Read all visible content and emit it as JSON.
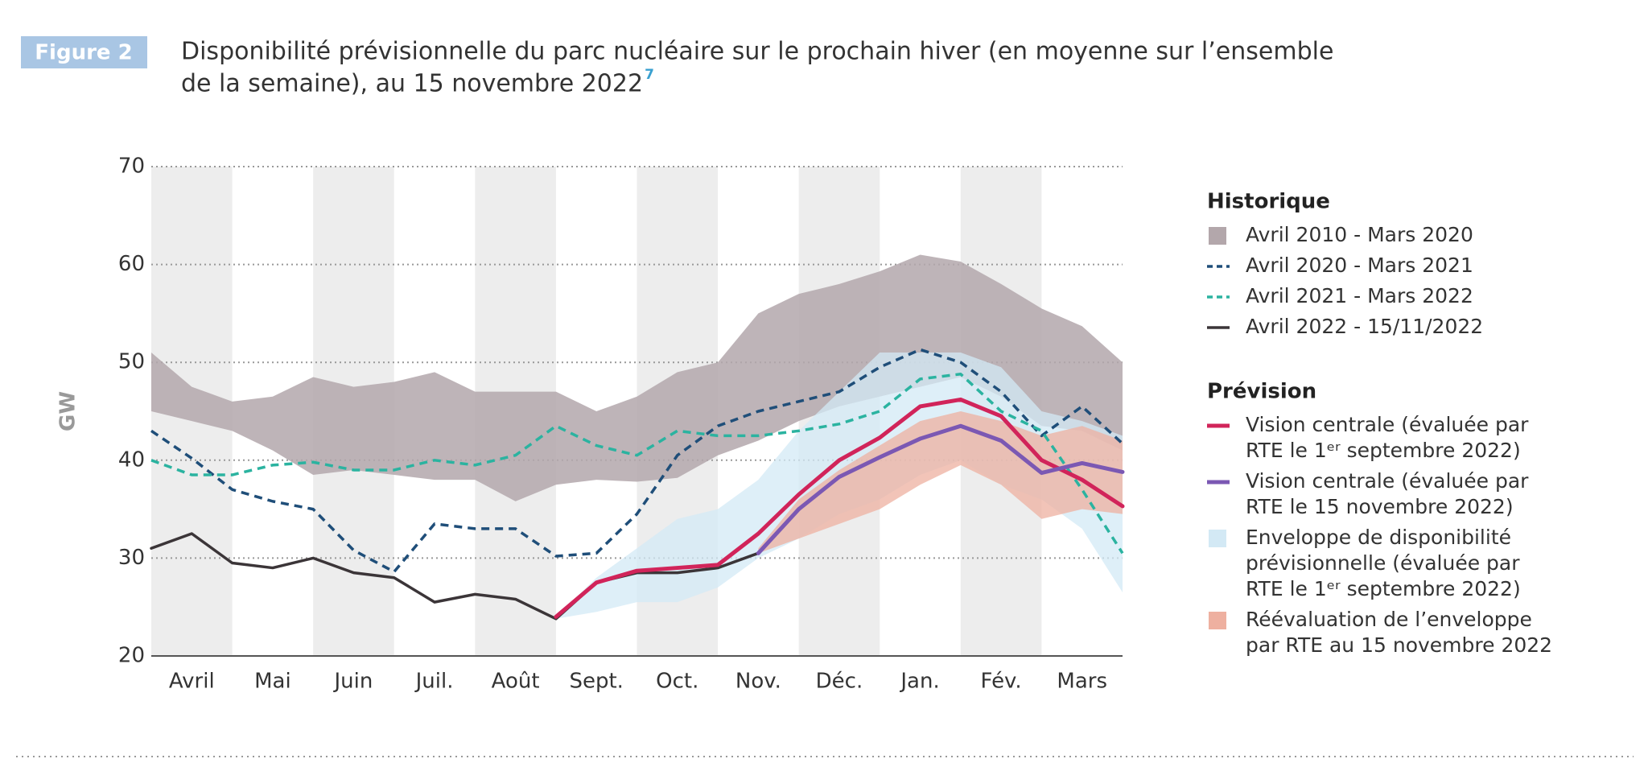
{
  "chart_data": {
    "type": "line",
    "figure_label": "Figure 2",
    "title_lines": [
      "Disponibilité prévisionnelle du parc nucléaire sur le prochain hiver (en moyenne sur l’ensemble",
      "de la semaine), au 15 novembre 2022"
    ],
    "title_note": "7",
    "y_label": "GW",
    "categories": [
      "Avril",
      "Mai",
      "Juin",
      "Juil.",
      "Août",
      "Sept.",
      "Oct.",
      "Nov.",
      "Déc.",
      "Jan.",
      "Fév.",
      "Mars"
    ],
    "alternate_shading": true,
    "xlim": [
      0,
      12
    ],
    "ylim": [
      20,
      70
    ],
    "yticks": [
      20,
      30,
      40,
      50,
      60,
      70
    ],
    "grid": true,
    "legend_titles": [
      "Historique",
      "Prévision"
    ],
    "x": [
      0,
      0.5,
      1,
      1.5,
      2,
      2.5,
      3,
      3.5,
      4,
      4.5,
      5,
      5.5,
      6,
      6.5,
      7,
      7.5,
      8,
      8.5,
      9,
      9.5,
      10,
      10.5,
      11,
      11.5,
      12
    ],
    "series": [
      {
        "name": "Avril 2010 - Mars 2020",
        "color": "#b3a7ab",
        "upper": [
          51,
          47.5,
          46,
          46.5,
          48.5,
          47.5,
          48,
          49,
          47,
          47,
          47,
          45,
          46.5,
          49,
          50,
          55,
          57,
          58,
          59.3,
          61,
          60.3,
          58,
          55.5,
          53.7,
          50
        ],
        "lower": [
          45,
          44,
          43,
          41,
          38.5,
          39,
          38.5,
          38,
          38,
          35.8,
          37.5,
          38,
          37.8,
          38.2,
          40.5,
          42,
          44,
          45.5,
          46.5,
          47.5,
          48.5,
          46.5,
          43.5,
          43,
          41
        ]
      },
      {
        "name": "Avril 2020 - Mars 2021",
        "color": "#1f4e79",
        "dashed": true,
        "values": [
          43,
          40.2,
          37,
          35.8,
          35,
          30.8,
          28.6,
          33.5,
          33,
          33,
          30.2,
          30.5,
          34.5,
          40.5,
          43.5,
          45,
          46,
          47,
          49.5,
          51.3,
          50,
          47,
          42.5,
          45.5,
          41.7
        ]
      },
      {
        "name": "Avril 2021 - Mars 2022",
        "color": "#2bb3a0",
        "dashed": true,
        "values": [
          40,
          38.5,
          38.5,
          39.5,
          39.8,
          39,
          39,
          40,
          39.5,
          40.5,
          43.5,
          41.5,
          40.5,
          43,
          42.5,
          42.5,
          43,
          43.7,
          45,
          48.3,
          48.8,
          45,
          43,
          37,
          30.5
        ]
      },
      {
        "name": "Avril 2022 - 15/11/2022",
        "color": "#3b3538",
        "values": [
          31,
          32.5,
          29.5,
          29,
          30,
          28.5,
          28,
          25.5,
          26.3,
          25.8,
          23.8,
          27.5,
          28.5,
          28.5,
          29,
          30.5,
          null,
          null,
          null,
          null,
          null,
          null,
          null,
          null,
          null
        ]
      },
      {
        "name": "Vision centrale (évaluée par RTE le 1ᵉʳ septembre 2022)",
        "color": "#d1245a",
        "width": 5,
        "values": [
          null,
          null,
          null,
          null,
          null,
          null,
          null,
          null,
          null,
          null,
          24,
          27.5,
          28.7,
          29,
          29.3,
          32.5,
          36.5,
          40,
          42.3,
          45.5,
          46.2,
          44.5,
          40,
          38,
          35.3
        ]
      },
      {
        "name": "Vision centrale (évaluée par RTE le 15 novembre 2022)",
        "color": "#7b58b3",
        "width": 5,
        "values": [
          null,
          null,
          null,
          null,
          null,
          null,
          null,
          null,
          null,
          null,
          null,
          null,
          null,
          null,
          null,
          30.5,
          35,
          38.3,
          40.3,
          42.2,
          43.5,
          42,
          38.7,
          39.7,
          38.8
        ]
      },
      {
        "name": "Enveloppe de disponibilité prévisionnelle (évaluée par RTE le 1ᵉʳ septembre 2022)",
        "color": "#d3e9f5",
        "upper": [
          null,
          null,
          null,
          null,
          null,
          null,
          null,
          null,
          null,
          null,
          24,
          28,
          31,
          34,
          35,
          38,
          43,
          47,
          51,
          51,
          51,
          49.5,
          45,
          44,
          42.5
        ],
        "lower": [
          null,
          null,
          null,
          null,
          null,
          null,
          null,
          null,
          null,
          null,
          23.8,
          24.5,
          25.5,
          25.5,
          27,
          30,
          32,
          34.5,
          36,
          38.5,
          40,
          37.5,
          36,
          33,
          26.5
        ]
      },
      {
        "name": "Réévaluation de l’enveloppe par RTE au 15 novembre 2022",
        "color": "#eeb0a0",
        "upper": [
          null,
          null,
          null,
          null,
          null,
          null,
          null,
          null,
          null,
          null,
          null,
          null,
          null,
          null,
          null,
          31,
          36,
          39,
          41.5,
          44,
          45,
          44,
          42.5,
          43.5,
          42
        ],
        "lower": [
          null,
          null,
          null,
          null,
          null,
          null,
          null,
          null,
          null,
          null,
          null,
          null,
          null,
          null,
          null,
          30.5,
          32,
          33.5,
          35,
          37.5,
          39.5,
          37.5,
          34,
          35,
          34.5
        ]
      }
    ]
  }
}
